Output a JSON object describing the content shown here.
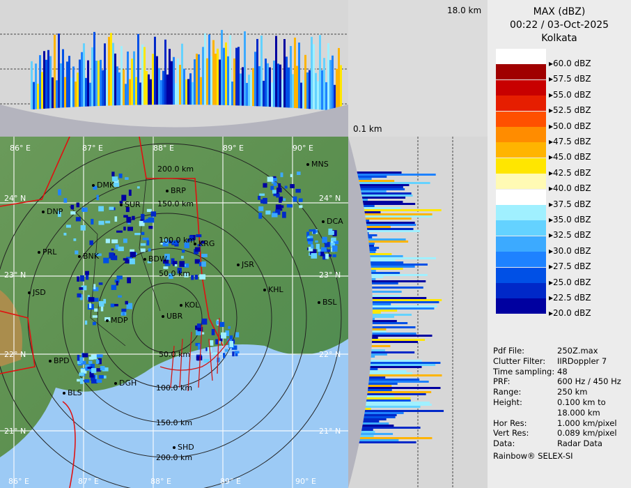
{
  "header": {
    "product": "MAX (dBZ)",
    "datetime": "00:22 / 03-Oct-2025",
    "station": "Kolkata"
  },
  "height_labels": {
    "top": "18.0 km",
    "bottom": "0.1 km"
  },
  "legend": {
    "levels": [
      {
        "label": "60.0 dBZ",
        "color": "#ffffff"
      },
      {
        "label": "57.5 dBZ",
        "color": "#a00000"
      },
      {
        "label": "55.0 dBZ",
        "color": "#c80000"
      },
      {
        "label": "52.5 dBZ",
        "color": "#e61e00"
      },
      {
        "label": "50.0 dBZ",
        "color": "#ff5000"
      },
      {
        "label": "47.5 dBZ",
        "color": "#ff8c00"
      },
      {
        "label": "45.0 dBZ",
        "color": "#ffb400"
      },
      {
        "label": "42.5 dBZ",
        "color": "#ffe600"
      },
      {
        "label": "40.0 dBZ",
        "color": "#fffab4"
      },
      {
        "label": "37.5 dBZ",
        "color": "#ffffff"
      },
      {
        "label": "35.0 dBZ",
        "color": "#a0f0ff"
      },
      {
        "label": "32.5 dBZ",
        "color": "#64d2ff"
      },
      {
        "label": "30.0 dBZ",
        "color": "#3caaff"
      },
      {
        "label": "27.5 dBZ",
        "color": "#1e82ff"
      },
      {
        "label": "25.0 dBZ",
        "color": "#0050e6"
      },
      {
        "label": "22.5 dBZ",
        "color": "#0028c8"
      },
      {
        "label": "20.0 dBZ",
        "color": "#0000a0"
      }
    ]
  },
  "info": [
    {
      "key": "Pdf File:",
      "value": "250Z.max"
    },
    {
      "key": "Clutter Filter:",
      "value": "IIRDoppler 7"
    },
    {
      "key": "Time sampling:",
      "value": "48"
    },
    {
      "key": "PRF:",
      "value": "600 Hz / 450 Hz"
    },
    {
      "key": "Range:",
      "value": "250 km"
    },
    {
      "key": "Height:",
      "value": "0.100 km to"
    },
    {
      "key": "",
      "value": "18.000 km"
    },
    {
      "key": "Hor Res:",
      "value": "1.000 km/pixel"
    },
    {
      "key": "Vert Res:",
      "value": "0.089 km/pixel"
    },
    {
      "key": "Data:",
      "value": "Radar Data"
    }
  ],
  "footer": "Rainbow® SELEX-SI",
  "map": {
    "lon_top": [
      "86° E",
      "87° E",
      "88° E",
      "89° E",
      "90° E"
    ],
    "lon_bottom": [
      "86° E",
      "87° E",
      "88° E",
      "89° E",
      "90° E"
    ],
    "lat_left": [
      "24° N",
      "23° N",
      "22° N",
      "21° N"
    ],
    "lat_right": [
      "24° N",
      "23° N",
      "22° N",
      "21° N"
    ],
    "range_rings": [
      "50.0 km",
      "100.0 km",
      "150.0 km",
      "200.0 km",
      "50.0 km",
      "100.0 km",
      "150.0 km",
      "200.0 km"
    ],
    "cities": [
      "MNS",
      "DMK",
      "BRP",
      "DNP",
      "SUR",
      "DCA",
      "PRL",
      "BNK",
      "BDW",
      "KRG",
      "JSR",
      "JSD",
      "KHL",
      "BSL",
      "KOL",
      "MDP",
      "UBR",
      "BPD",
      "DGH",
      "BLS",
      "SHD"
    ]
  }
}
